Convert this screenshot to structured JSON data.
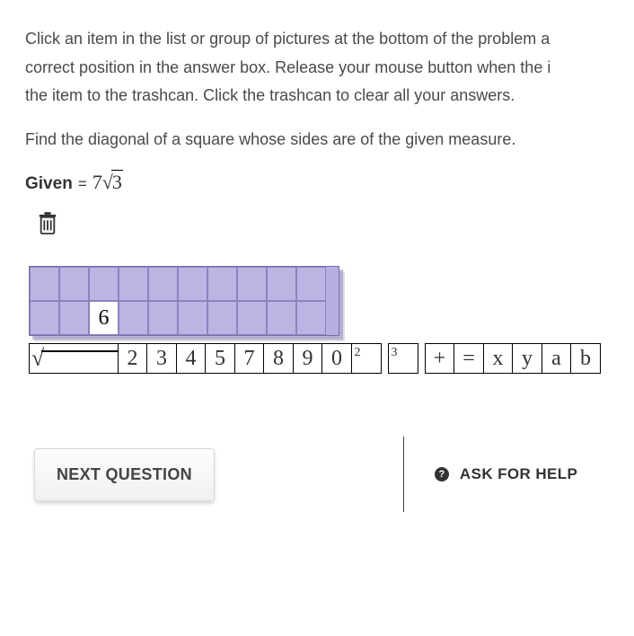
{
  "instructions": {
    "line1": "Click an item in the list or group of pictures at the bottom of the problem a",
    "line2": "correct position in the answer box. Release your mouse button when the i",
    "line3": "the item to the trashcan. Click the trashcan to clear all your answers."
  },
  "problem": "Find the diagonal of a square whose sides are of the given measure.",
  "given": {
    "label": "Given",
    "equals": "=",
    "coef": "7",
    "radicand": "3"
  },
  "answer_grid": {
    "rows": 2,
    "cols": 10,
    "filled": {
      "row": 1,
      "col": 2,
      "value": "6"
    },
    "cell_bg": "#bdb4e3",
    "border": "#8d82bd",
    "outer_bg": "#b8aee0"
  },
  "tiles": [
    {
      "type": "sqrt",
      "label": "√"
    },
    {
      "type": "num",
      "label": "2"
    },
    {
      "type": "num",
      "label": "3"
    },
    {
      "type": "num",
      "label": "4"
    },
    {
      "type": "num",
      "label": "5"
    },
    {
      "type": "num",
      "label": "7"
    },
    {
      "type": "num",
      "label": "8"
    },
    {
      "type": "num",
      "label": "9"
    },
    {
      "type": "num",
      "label": "0"
    },
    {
      "type": "sup",
      "label": "2"
    },
    {
      "type": "gap"
    },
    {
      "type": "sup",
      "label": "3"
    },
    {
      "type": "gap"
    },
    {
      "type": "op",
      "label": "+"
    },
    {
      "type": "op",
      "label": "="
    },
    {
      "type": "var",
      "label": "x"
    },
    {
      "type": "var",
      "label": "y"
    },
    {
      "type": "var",
      "label": "a"
    },
    {
      "type": "var",
      "label": "b"
    }
  ],
  "footer": {
    "next": "NEXT QUESTION",
    "help": "ASK FOR HELP",
    "help_glyph": "?"
  },
  "colors": {
    "text": "#4a4a4a",
    "accent": "#b8aee0"
  }
}
